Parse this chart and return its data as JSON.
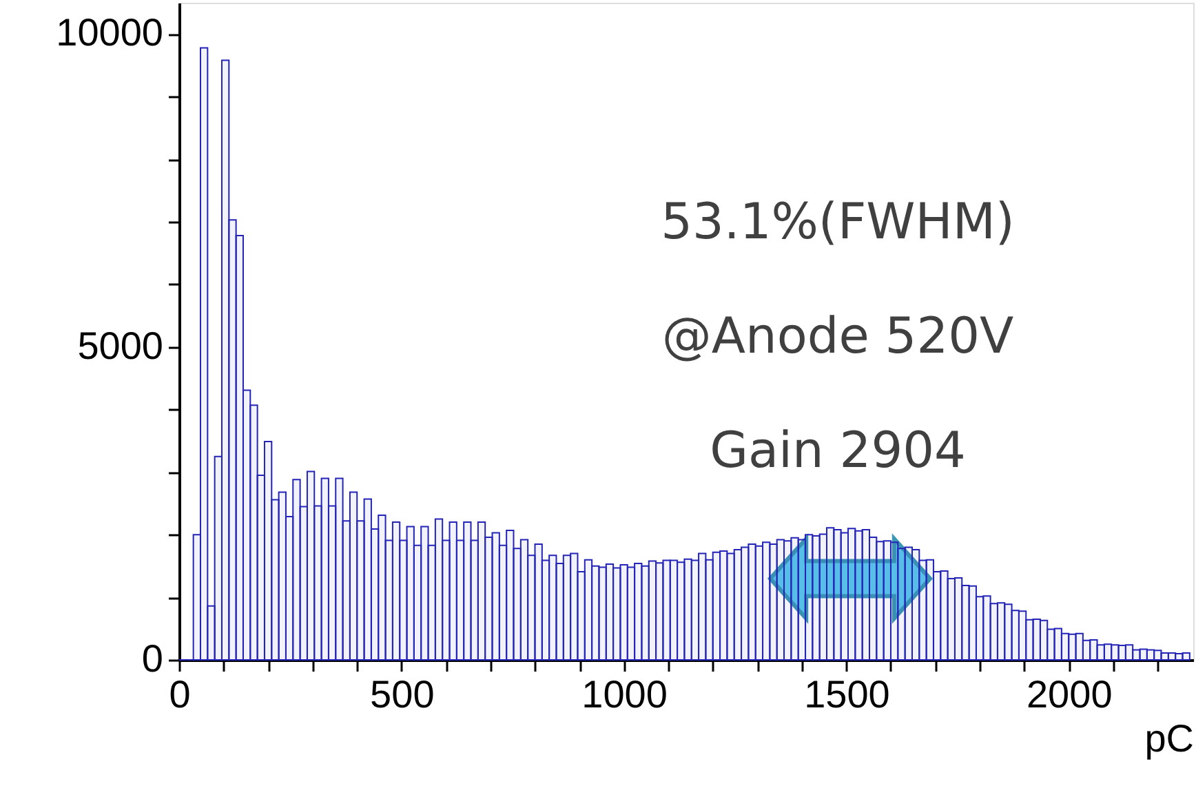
{
  "chart_data": {
    "type": "histogram",
    "xlabel": "pC",
    "color": "#2424b8",
    "bins": [
      0,
      16,
      32,
      48,
      64,
      80,
      96,
      112,
      128,
      144,
      160,
      176,
      192,
      208,
      224,
      240,
      256,
      272,
      288,
      304,
      320,
      336,
      352,
      368,
      384,
      400,
      416,
      432,
      448,
      464,
      480,
      496,
      512,
      528,
      544,
      560,
      576,
      592,
      608,
      624,
      640,
      656,
      672,
      688,
      704,
      720,
      736,
      752,
      768,
      784,
      800,
      816,
      832,
      848,
      864,
      880,
      896,
      912,
      928,
      944,
      960,
      976,
      992,
      1008,
      1024,
      1040,
      1056,
      1072,
      1088,
      1104,
      1120,
      1136,
      1152,
      1168,
      1184,
      1200,
      1216,
      1232,
      1248,
      1264,
      1280,
      1296,
      1312,
      1328,
      1344,
      1360,
      1376,
      1392,
      1408,
      1424,
      1440,
      1456,
      1472,
      1488,
      1504,
      1520,
      1536,
      1552,
      1568,
      1584,
      1600,
      1616,
      1632,
      1648,
      1664,
      1680,
      1696,
      1712,
      1728,
      1744,
      1760,
      1776,
      1792,
      1808,
      1824,
      1840,
      1856,
      1872,
      1888,
      1904,
      1920,
      1936,
      1952,
      1968,
      1984,
      2000,
      2016,
      2032,
      2048,
      2064,
      2080,
      2096,
      2112,
      2128,
      2144,
      2160,
      2176,
      2192,
      2208,
      2224,
      2240,
      2256,
      2272
    ],
    "values": [
      0,
      0,
      2000,
      9780,
      860,
      3250,
      9580,
      7030,
      6780,
      4310,
      4070,
      2950,
      3490,
      2560,
      2680,
      2290,
      2880,
      2450,
      3010,
      2460,
      2900,
      2460,
      2900,
      2220,
      2680,
      2220,
      2570,
      2090,
      2310,
      1910,
      2200,
      1910,
      2130,
      1830,
      2130,
      1830,
      2250,
      1910,
      2200,
      1910,
      2200,
      1910,
      2200,
      1960,
      2030,
      1830,
      2070,
      1780,
      1920,
      1670,
      1850,
      1590,
      1670,
      1540,
      1670,
      1700,
      1410,
      1600,
      1500,
      1480,
      1530,
      1470,
      1520,
      1480,
      1540,
      1500,
      1580,
      1550,
      1590,
      1590,
      1560,
      1610,
      1590,
      1700,
      1600,
      1720,
      1740,
      1700,
      1760,
      1800,
      1850,
      1820,
      1880,
      1850,
      1920,
      1900,
      1950,
      1920,
      2000,
      1980,
      2010,
      2110,
      2080,
      2030,
      2100,
      2060,
      2080,
      1960,
      1890,
      1900,
      1880,
      1780,
      1800,
      1760,
      1590,
      1600,
      1410,
      1420,
      1300,
      1310,
      1190,
      1180,
      1010,
      1020,
      900,
      910,
      890,
      790,
      780,
      640,
      650,
      630,
      490,
      500,
      420,
      410,
      420,
      310,
      320,
      240,
      250,
      240,
      230,
      240,
      160,
      170,
      160,
      150,
      110,
      110,
      100,
      110
    ],
    "xlim": [
      0,
      2280
    ],
    "ylim": [
      0,
      10500
    ],
    "xticks": [
      0,
      {
        "value": 100,
        "label": null
      },
      {
        "value": 200,
        "label": null
      },
      {
        "value": 300,
        "label": null
      },
      {
        "value": 400,
        "label": null
      },
      500,
      {
        "value": 600,
        "label": null
      },
      {
        "value": 700,
        "label": null
      },
      {
        "value": 800,
        "label": null
      },
      {
        "value": 900,
        "label": null
      },
      1000,
      {
        "value": 1100,
        "label": null
      },
      {
        "value": 1200,
        "label": null
      },
      {
        "value": 1300,
        "label": null
      },
      {
        "value": 1400,
        "label": null
      },
      1500,
      {
        "value": 1600,
        "label": null
      },
      {
        "value": 1700,
        "label": null
      },
      {
        "value": 1800,
        "label": null
      },
      {
        "value": 1900,
        "label": null
      },
      2000,
      {
        "value": 2100,
        "label": null
      },
      {
        "value": 2200,
        "label": null
      }
    ],
    "yticks": [
      0,
      {
        "value": 1000,
        "label": null
      },
      {
        "value": 2000,
        "label": null
      },
      {
        "value": 3000,
        "label": null
      },
      {
        "value": 4000,
        "label": null
      },
      5000,
      {
        "value": 6000,
        "label": null
      },
      {
        "value": 7000,
        "label": null
      },
      {
        "value": 8000,
        "label": null
      },
      {
        "value": 9000,
        "label": null
      },
      10000
    ],
    "annotations": [
      "53.1%(FWHM)",
      "@Anode 520V",
      "Gain 2904"
    ],
    "grid": false
  }
}
